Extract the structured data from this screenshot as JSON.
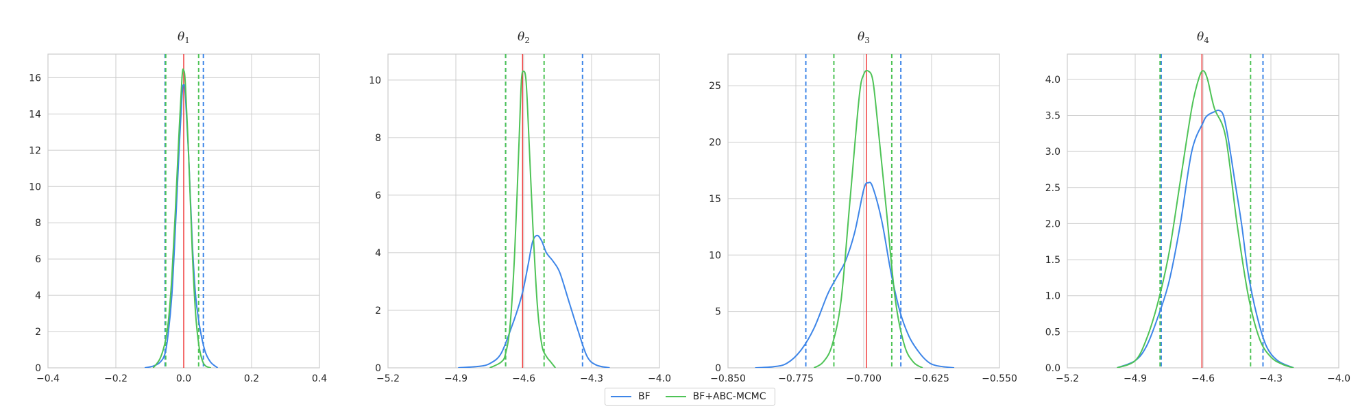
{
  "chart_data": [
    {
      "type": "line",
      "title": "θ",
      "title_sub": "1",
      "xlim": [
        -0.4,
        0.4
      ],
      "ylim": [
        0,
        17.3
      ],
      "xticks": [
        -0.4,
        -0.2,
        0.0,
        0.2,
        0.4
      ],
      "xtick_labels": [
        "−0.4",
        "−0.2",
        "0.0",
        "0.2",
        "0.4"
      ],
      "yticks": [
        0,
        2,
        4,
        6,
        8,
        10,
        12,
        14,
        16
      ],
      "ytick_labels": [
        "0",
        "2",
        "4",
        "6",
        "8",
        "10",
        "12",
        "14",
        "16"
      ],
      "true_value": 0.0,
      "series": [
        {
          "name": "BF",
          "color": "#3d85e8",
          "x": [
            -0.115,
            -0.09,
            -0.07,
            -0.055,
            -0.045,
            -0.035,
            -0.025,
            -0.015,
            -0.005,
            0.0,
            0.005,
            0.015,
            0.025,
            0.035,
            0.045,
            0.055,
            0.065,
            0.08,
            0.1
          ],
          "y": [
            0,
            0.1,
            0.3,
            0.8,
            2.0,
            4.0,
            7.5,
            11.5,
            15.0,
            15.6,
            15.0,
            11.5,
            7.0,
            4.0,
            2.5,
            1.5,
            0.8,
            0.3,
            0
          ],
          "ci": [
            -0.055,
            0.058
          ]
        },
        {
          "name": "BF+ABC-MCMC",
          "color": "#4ec356",
          "x": [
            -0.09,
            -0.07,
            -0.055,
            -0.045,
            -0.035,
            -0.025,
            -0.015,
            -0.005,
            0.0,
            0.005,
            0.015,
            0.025,
            0.035,
            0.045,
            0.055,
            0.065,
            0.08
          ],
          "y": [
            0,
            0.5,
            1.4,
            2.6,
            5.0,
            8.5,
            12.5,
            16.0,
            16.4,
            15.6,
            11.5,
            6.5,
            3.0,
            1.2,
            0.4,
            0.1,
            0
          ],
          "ci": [
            -0.053,
            0.044
          ]
        }
      ]
    },
    {
      "type": "line",
      "title": "θ",
      "title_sub": "2",
      "xlim": [
        -5.2,
        -4.0
      ],
      "ylim": [
        0,
        10.9
      ],
      "xticks": [
        -5.2,
        -4.9,
        -4.6,
        -4.3,
        -4.0
      ],
      "xtick_labels": [
        "−5.2",
        "−4.9",
        "−4.6",
        "−4.3",
        "−4.0"
      ],
      "yticks": [
        0,
        2,
        4,
        6,
        8,
        10
      ],
      "ytick_labels": [
        "0",
        "2",
        "4",
        "6",
        "8",
        "10"
      ],
      "true_value": -4.605,
      "series": [
        {
          "name": "BF",
          "color": "#3d85e8",
          "x": [
            -4.89,
            -4.8,
            -4.75,
            -4.7,
            -4.65,
            -4.62,
            -4.6,
            -4.58,
            -4.56,
            -4.54,
            -4.52,
            -4.5,
            -4.47,
            -4.44,
            -4.4,
            -4.36,
            -4.32,
            -4.28,
            -4.22
          ],
          "y": [
            0,
            0.05,
            0.15,
            0.5,
            1.5,
            2.2,
            2.8,
            3.6,
            4.4,
            4.6,
            4.4,
            4.0,
            3.7,
            3.3,
            2.3,
            1.3,
            0.4,
            0.1,
            0
          ],
          "ci": [
            -4.68,
            -4.34
          ]
        },
        {
          "name": "BF+ABC-MCMC",
          "color": "#4ec356",
          "x": [
            -4.75,
            -4.7,
            -4.68,
            -4.66,
            -4.64,
            -4.62,
            -4.61,
            -4.6,
            -4.59,
            -4.58,
            -4.56,
            -4.54,
            -4.52,
            -4.5,
            -4.48,
            -4.46
          ],
          "y": [
            0,
            0.2,
            0.5,
            1.5,
            4.0,
            8.0,
            10.0,
            10.3,
            10.0,
            8.5,
            5.0,
            2.2,
            0.8,
            0.4,
            0.2,
            0
          ],
          "ci": [
            -4.68,
            -4.51
          ]
        }
      ]
    },
    {
      "type": "line",
      "title": "θ",
      "title_sub": "3",
      "xlim": [
        -0.85,
        -0.55
      ],
      "ylim": [
        0,
        27.8
      ],
      "xticks": [
        -0.85,
        -0.775,
        -0.7,
        -0.625,
        -0.55
      ],
      "xtick_labels": [
        "−0.850",
        "−0.775",
        "−0.700",
        "−0.625",
        "−0.550"
      ],
      "yticks": [
        0,
        5,
        10,
        15,
        20,
        25
      ],
      "ytick_labels": [
        "0",
        "5",
        "10",
        "15",
        "20",
        "25"
      ],
      "true_value": -0.697,
      "series": [
        {
          "name": "BF",
          "color": "#3d85e8",
          "x": [
            -0.82,
            -0.8,
            -0.785,
            -0.77,
            -0.755,
            -0.74,
            -0.73,
            -0.72,
            -0.71,
            -0.7,
            -0.695,
            -0.69,
            -0.68,
            -0.67,
            -0.66,
            -0.65,
            -0.64,
            -0.63,
            -0.62,
            -0.6
          ],
          "y": [
            0,
            0.1,
            0.4,
            1.5,
            3.5,
            6.5,
            8.0,
            9.5,
            12.0,
            15.8,
            16.4,
            16.0,
            13.0,
            8.5,
            5.0,
            2.8,
            1.5,
            0.6,
            0.2,
            0
          ],
          "ci": [
            -0.764,
            -0.659
          ]
        },
        {
          "name": "BF+ABC-MCMC",
          "color": "#4ec356",
          "x": [
            -0.755,
            -0.745,
            -0.735,
            -0.725,
            -0.715,
            -0.705,
            -0.7,
            -0.695,
            -0.69,
            -0.685,
            -0.675,
            -0.665,
            -0.655,
            -0.645,
            -0.635
          ],
          "y": [
            0,
            0.5,
            2.0,
            6.0,
            15.0,
            24.0,
            26.0,
            26.3,
            25.5,
            22.0,
            14.0,
            6.0,
            2.0,
            0.5,
            0
          ],
          "ci": [
            -0.733,
            -0.669
          ]
        }
      ]
    },
    {
      "type": "line",
      "title": "θ",
      "title_sub": "4",
      "xlim": [
        -5.2,
        -4.0
      ],
      "ylim": [
        0,
        4.35
      ],
      "xticks": [
        -5.2,
        -4.9,
        -4.6,
        -4.3,
        -4.0
      ],
      "xtick_labels": [
        "−5.2",
        "−4.9",
        "−4.6",
        "−4.3",
        "−4.0"
      ],
      "yticks": [
        0,
        0.5,
        1.0,
        1.5,
        2.0,
        2.5,
        3.0,
        3.5,
        4.0
      ],
      "ytick_labels": [
        "0.0",
        "0.5",
        "1.0",
        "1.5",
        "2.0",
        "2.5",
        "3.0",
        "3.5",
        "4.0"
      ],
      "true_value": -4.605,
      "series": [
        {
          "name": "BF",
          "color": "#3d85e8",
          "x": [
            -4.98,
            -4.9,
            -4.85,
            -4.8,
            -4.75,
            -4.7,
            -4.65,
            -4.6,
            -4.58,
            -4.55,
            -4.53,
            -4.51,
            -4.49,
            -4.46,
            -4.43,
            -4.4,
            -4.36,
            -4.32,
            -4.27,
            -4.2
          ],
          "y": [
            0,
            0.1,
            0.3,
            0.7,
            1.2,
            2.0,
            3.0,
            3.4,
            3.5,
            3.55,
            3.57,
            3.5,
            3.2,
            2.6,
            2.0,
            1.3,
            0.7,
            0.3,
            0.1,
            0
          ],
          "ci": [
            -4.785,
            -4.335
          ]
        },
        {
          "name": "BF+ABC-MCMC",
          "color": "#4ec356",
          "x": [
            -4.98,
            -4.9,
            -4.85,
            -4.8,
            -4.75,
            -4.7,
            -4.65,
            -4.62,
            -4.6,
            -4.58,
            -4.55,
            -4.5,
            -4.45,
            -4.4,
            -4.35,
            -4.3,
            -4.25,
            -4.2
          ],
          "y": [
            0,
            0.1,
            0.4,
            0.9,
            1.6,
            2.6,
            3.6,
            4.0,
            4.12,
            4.0,
            3.6,
            3.2,
            2.0,
            1.0,
            0.4,
            0.15,
            0.05,
            0
          ],
          "ci": [
            -4.79,
            -4.39
          ]
        }
      ]
    }
  ],
  "legend": {
    "placement": "bottom-center",
    "items": [
      {
        "label": "BF",
        "color": "#3d85e8"
      },
      {
        "label": "BF+ABC-MCMC",
        "color": "#4ec356"
      }
    ]
  },
  "colors": {
    "true_value_line": "#f03c3c",
    "grid": "#cccccc",
    "axes_edge": "#cccccc"
  }
}
